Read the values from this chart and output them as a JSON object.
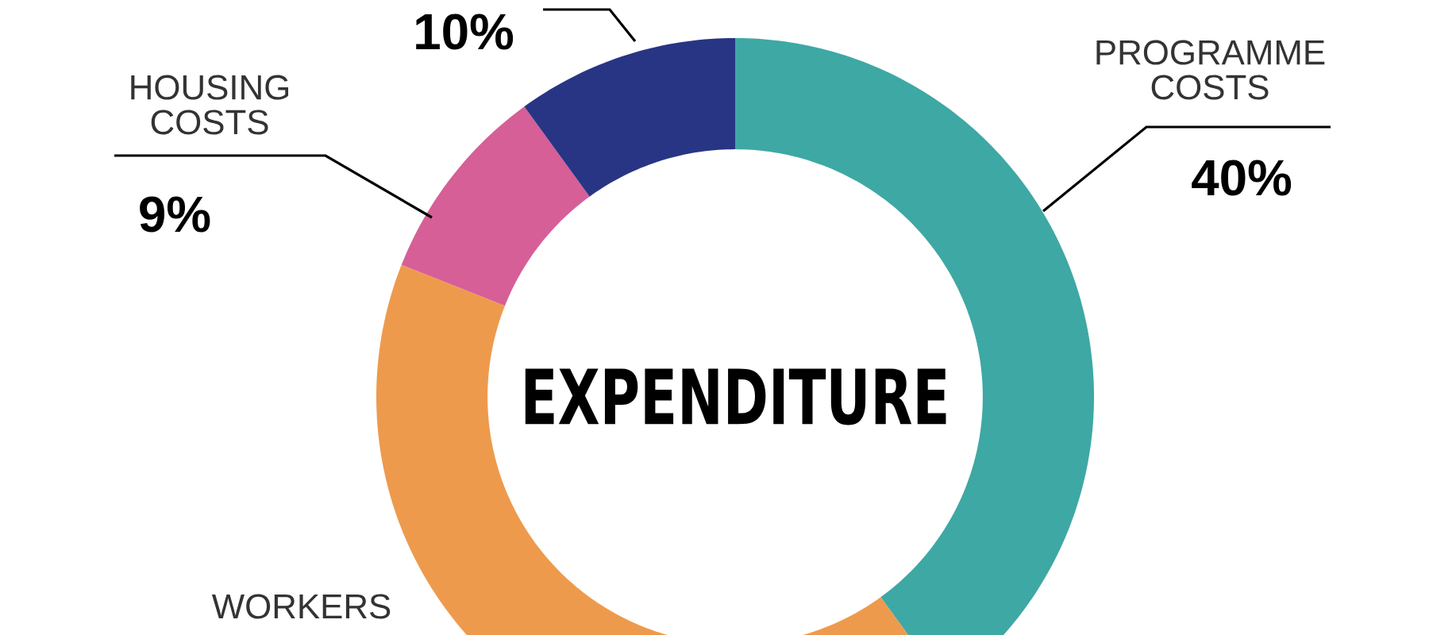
{
  "chart_data": {
    "type": "donut",
    "title": "EXPENDITURE",
    "categories": [
      "PROGRAMME COSTS",
      "WORKERS",
      "HOUSING COSTS",
      null
    ],
    "values": [
      40,
      41,
      9,
      10
    ],
    "colors": [
      "#3ea8a4",
      "#ee9a4d",
      "#d65f97",
      "#283584"
    ],
    "value_labels": [
      "40%",
      null,
      "9%",
      "10%"
    ]
  }
}
